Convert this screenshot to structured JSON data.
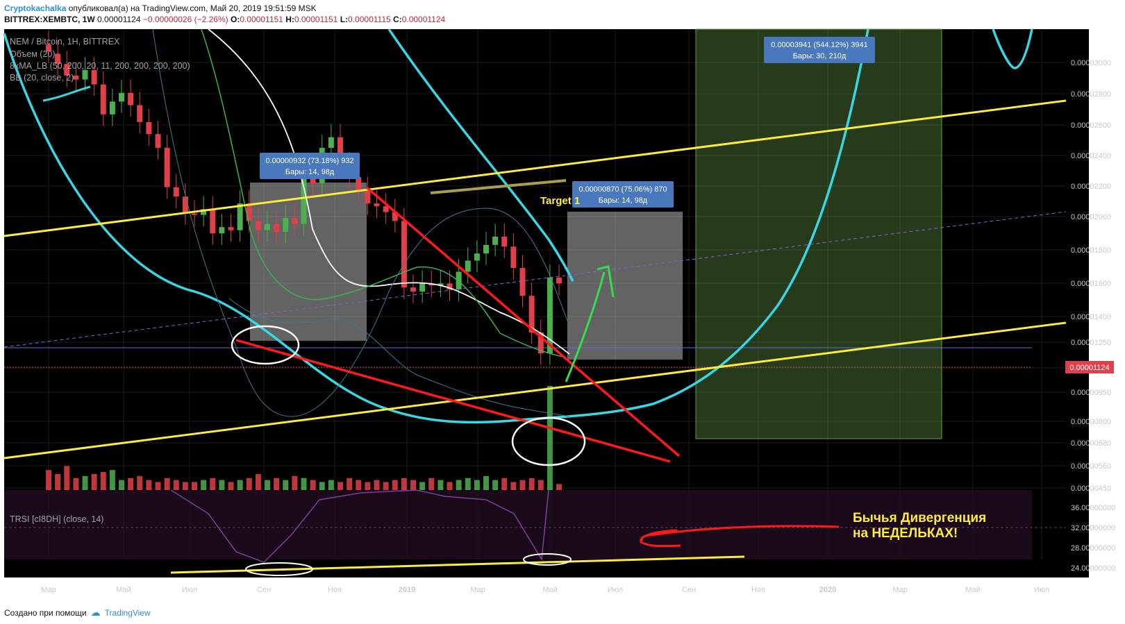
{
  "header": {
    "author": "Cryptokachalka",
    "published_text": "опубликовал(а) на TradingView.com, Май 20, 2019 19:51:59 MSK",
    "symbol": "BITTREX:XEMBTC, 1W",
    "last": "0.00001124",
    "change": "−0.00000026 (−2.26%)",
    "open_label": "O:",
    "open": "0.00001151",
    "high_label": "H:",
    "high": "0.00001151",
    "low_label": "L:",
    "low": "0.00001115",
    "close_label": "C:",
    "close": "0.00001124"
  },
  "legend": {
    "line1": "NEM / Bitcoin, 1Н, BITTREX",
    "line2": "Объем (20)",
    "line3": "8xMA_LB (50, 200, 20, 11, 200, 200, 200, 200)",
    "line4": "BB (20, close, 2)"
  },
  "measures": [
    {
      "value": "0.00000932 (73.18%) 932",
      "bars": "Бары: 14, 98д"
    },
    {
      "value": "0.00000870 (75.06%) 870",
      "bars": "Бары: 14, 98д"
    },
    {
      "value": "0.00003941 (544.12%) 3941",
      "bars": "Бары: 30, 210д"
    }
  ],
  "target_label": "Target 1",
  "annotation": {
    "line1": "Бычья Дивергенция",
    "line2": "на НЕДЕЛЬКАХ!"
  },
  "rsi_label": "TRSI [cI8DH] (close, 14)",
  "price_label": "0.00001124",
  "footer": {
    "prefix": "Создано при помощи",
    "brand": "TradingView"
  },
  "colors": {
    "up": "#4caf50",
    "down": "#e0404a",
    "trend_yellow": "#ffeb3b",
    "trend_red": "#ff1a1a",
    "cyan": "#36d8e6",
    "bg": "#000000"
  },
  "chart_data": {
    "type": "candlestick",
    "x_tick_labels": [
      "Мар",
      "Май",
      "Июл",
      "Сен",
      "Ноя",
      "2019",
      "Мар",
      "Май",
      "Июл",
      "Сен",
      "Ноя",
      "2020",
      "Мар",
      "Май",
      "Июл"
    ],
    "y_tick_labels": [
      "0.00003000",
      "0.00002800",
      "0.00002600",
      "0.00002400",
      "0.00002200",
      "0.00002000",
      "0.00001800",
      "0.00001600",
      "0.00001400",
      "0.00001250",
      "0.00001100",
      "0.00000950",
      "0.00000800",
      "0.00000680",
      "0.00000560",
      "0.00000450"
    ],
    "y_scale": "log",
    "candles": [
      [
        3.25e-05,
        3.15e-05
      ],
      [
        3.12e-05,
        2.98e-05
      ],
      [
        2.98e-05,
        2.83e-05
      ],
      [
        2.83e-05,
        2.78e-05
      ],
      [
        2.78e-05,
        2.9e-05
      ],
      [
        2.9e-05,
        2.72e-05
      ],
      [
        2.72e-05,
        2.38e-05
      ],
      [
        2.38e-05,
        2.52e-05
      ],
      [
        2.52e-05,
        2.62e-05
      ],
      [
        2.62e-05,
        2.48e-05
      ],
      [
        2.48e-05,
        2.3e-05
      ],
      [
        2.3e-05,
        2.18e-05
      ],
      [
        2.18e-05,
        2.05e-05
      ],
      [
        2.05e-05,
        1.72e-05
      ],
      [
        1.72e-05,
        1.65e-05
      ],
      [
        1.65e-05,
        1.53e-05
      ],
      [
        1.53e-05,
        1.52e-05
      ],
      [
        1.52e-05,
        1.56e-05
      ],
      [
        1.56e-05,
        1.4e-05
      ],
      [
        1.4e-05,
        1.44e-05
      ],
      [
        1.44e-05,
        1.42e-05
      ],
      [
        1.42e-05,
        1.6e-05
      ],
      [
        1.6e-05,
        1.48e-05
      ],
      [
        1.48e-05,
        1.42e-05
      ],
      [
        1.42e-05,
        1.46e-05
      ],
      [
        1.46e-05,
        1.41e-05
      ],
      [
        1.41e-05,
        1.5e-05
      ],
      [
        1.5e-05,
        1.46e-05
      ],
      [
        1.46e-05,
        1.8e-05
      ],
      [
        1.8e-05,
        1.75e-05
      ],
      [
        1.75e-05,
        2.05e-05
      ],
      [
        2.05e-05,
        2.15e-05
      ],
      [
        2.15e-05,
        1.9e-05
      ],
      [
        1.9e-05,
        1.8e-05
      ],
      [
        1.8e-05,
        1.7e-05
      ],
      [
        1.7e-05,
        1.6e-05
      ],
      [
        1.6e-05,
        1.58e-05
      ],
      [
        1.58e-05,
        1.54e-05
      ],
      [
        1.54e-05,
        1.48e-05
      ],
      [
        1.48e-05,
        1.1e-05
      ],
      [
        1.1e-05,
        1.08e-05
      ],
      [
        1.08e-05,
        1.12e-05
      ],
      [
        1.12e-05,
        1.11e-05
      ],
      [
        1.11e-05,
        1.12e-05
      ],
      [
        1.12e-05,
        1.09e-05
      ],
      [
        1.09e-05,
        1.18e-05
      ],
      [
        1.18e-05,
        1.24e-05
      ],
      [
        1.24e-05,
        1.28e-05
      ],
      [
        1.28e-05,
        1.33e-05
      ],
      [
        1.33e-05,
        1.38e-05
      ],
      [
        1.38e-05,
        1.32e-05
      ],
      [
        1.32e-05,
        1.2e-05
      ],
      [
        1.2e-05,
        1.06e-05
      ],
      [
        1.06e-05,
        9e-06
      ],
      [
        9e-06,
        8.2e-06
      ],
      [
        8.2e-06,
        1.15e-05
      ],
      [
        1.15e-05,
        1.12e-05
      ]
    ],
    "volume": [
      10,
      8,
      12,
      6,
      7,
      8,
      9,
      10,
      5,
      6,
      7,
      5,
      4,
      6,
      5,
      4,
      4,
      5,
      6,
      5,
      4,
      5,
      6,
      8,
      5,
      6,
      5,
      7,
      6,
      5,
      4,
      5,
      4,
      6,
      5,
      4,
      5,
      4,
      5,
      6,
      5,
      4,
      6,
      5,
      4,
      5,
      6,
      5,
      7,
      5,
      6,
      4,
      5,
      6,
      5,
      52,
      3
    ],
    "rsi_axis": [
      "36.00000000",
      "32.00000000",
      "28.00000000",
      "24.00000000"
    ]
  }
}
